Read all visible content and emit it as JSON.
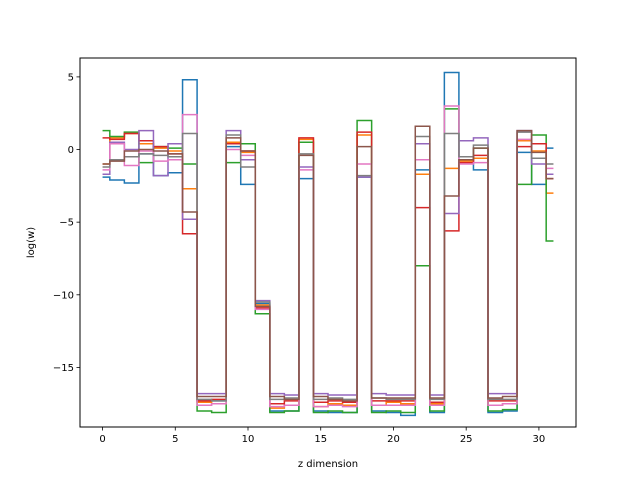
{
  "chart_data": {
    "type": "line",
    "drawstyle": "steps-mid",
    "title": "",
    "xlabel": "z dimension",
    "ylabel": "log(w)",
    "xlim": [
      -1.55,
      32.55
    ],
    "ylim": [
      -19.1,
      6.3
    ],
    "xticks": [
      0,
      5,
      10,
      15,
      20,
      25,
      30
    ],
    "yticks": [
      5,
      0,
      -5,
      -10,
      -15
    ],
    "ytick_labels": [
      "5",
      "0",
      "−5",
      "−10",
      "−15"
    ],
    "grid": false,
    "legend": false,
    "x": [
      0,
      1,
      2,
      3,
      4,
      5,
      6,
      7,
      8,
      9,
      10,
      11,
      12,
      13,
      14,
      15,
      16,
      17,
      18,
      19,
      20,
      21,
      22,
      23,
      24,
      25,
      26,
      27,
      28,
      29,
      30,
      31
    ],
    "series": [
      {
        "color": "#1f77b4",
        "values": [
          -1.9,
          -2.1,
          -2.3,
          -0.3,
          -1.8,
          -1.6,
          4.8,
          -17.3,
          -17.3,
          0.2,
          -2.4,
          -10.6,
          -18.0,
          -18.0,
          -2.0,
          -18.0,
          -18.1,
          -18.1,
          -1.9,
          -18.0,
          -18.1,
          -18.3,
          -1.4,
          -18.1,
          5.3,
          -0.5,
          -1.4,
          -18.1,
          -18.0,
          -0.2,
          -2.4,
          0.1
        ]
      },
      {
        "color": "#ff7f0e",
        "values": [
          -1.0,
          0.8,
          1.1,
          0.4,
          0.1,
          -0.1,
          -2.7,
          -17.4,
          -17.5,
          0.5,
          -0.2,
          -10.7,
          -17.8,
          -17.6,
          0.7,
          -17.7,
          -17.5,
          -17.6,
          1.0,
          -17.6,
          -17.4,
          -17.5,
          -1.7,
          -17.5,
          -1.3,
          -0.8,
          -0.6,
          -17.6,
          -17.5,
          0.6,
          -0.1,
          -3.0
        ]
      },
      {
        "color": "#2ca02c",
        "values": [
          1.3,
          0.9,
          1.2,
          -0.9,
          0.2,
          0.1,
          -1.0,
          -18.0,
          -18.1,
          -0.9,
          0.4,
          -11.3,
          -18.1,
          -18.0,
          0.5,
          -18.1,
          -18.0,
          -18.1,
          2.0,
          -18.1,
          -18.0,
          -18.1,
          -8.0,
          -18.0,
          2.8,
          -0.5,
          0.1,
          -18.0,
          -17.9,
          -2.4,
          1.0,
          -6.3
        ]
      },
      {
        "color": "#d62728",
        "values": [
          0.8,
          0.7,
          1.1,
          0.6,
          0.2,
          -0.3,
          -5.8,
          -17.3,
          -17.2,
          0.4,
          -0.1,
          -10.9,
          -17.5,
          -17.3,
          0.8,
          -17.4,
          -17.3,
          -17.4,
          1.2,
          -17.3,
          -17.3,
          -17.3,
          -4.0,
          -17.4,
          -5.6,
          -0.9,
          -0.4,
          -17.3,
          -17.3,
          0.2,
          0.4,
          -2.0
        ]
      },
      {
        "color": "#9467bd",
        "values": [
          -1.7,
          0.5,
          0.0,
          1.3,
          -1.8,
          0.4,
          -4.8,
          -16.8,
          -16.8,
          1.3,
          -0.7,
          -10.4,
          -16.8,
          -16.9,
          -1.2,
          -16.8,
          -16.9,
          -16.9,
          -1.9,
          -16.8,
          -16.9,
          -16.9,
          0.4,
          -16.9,
          -4.4,
          0.6,
          0.8,
          -16.8,
          -16.8,
          1.3,
          -1.0,
          -1.7
        ]
      },
      {
        "color": "#e377c2",
        "values": [
          -1.4,
          0.4,
          -1.1,
          -0.1,
          -0.8,
          -0.7,
          2.4,
          -17.6,
          -17.5,
          0.0,
          -0.4,
          -11.0,
          -17.7,
          -17.6,
          -1.4,
          -17.7,
          -17.6,
          -17.7,
          -1.0,
          -17.6,
          -17.6,
          -17.6,
          -0.7,
          -17.6,
          3.0,
          -1.0,
          -0.9,
          -17.6,
          -17.5,
          0.7,
          -0.6,
          -1.3
        ]
      },
      {
        "color": "#7f7f7f",
        "values": [
          -1.2,
          -0.7,
          -0.5,
          -0.3,
          -0.4,
          -0.5,
          1.1,
          -17.2,
          -17.3,
          1.0,
          -1.2,
          -10.5,
          -17.2,
          -17.1,
          -0.3,
          -17.2,
          -17.1,
          -17.2,
          -1.8,
          -17.1,
          -17.2,
          -17.2,
          0.9,
          -17.2,
          1.1,
          -0.5,
          0.3,
          -17.2,
          -17.2,
          1.2,
          -0.6,
          -1.0
        ]
      },
      {
        "color": "#8c564b",
        "values": [
          -1.0,
          -0.8,
          -0.1,
          0.0,
          -0.1,
          -0.3,
          -4.3,
          -17.0,
          -17.0,
          0.8,
          -0.1,
          -10.8,
          -17.0,
          -17.2,
          -0.4,
          -17.0,
          -17.2,
          -17.3,
          0.2,
          -17.1,
          -17.1,
          -17.1,
          1.6,
          -17.1,
          -3.2,
          -0.7,
          0.1,
          -17.1,
          -17.0,
          1.3,
          -0.2,
          -2.0
        ]
      }
    ]
  }
}
